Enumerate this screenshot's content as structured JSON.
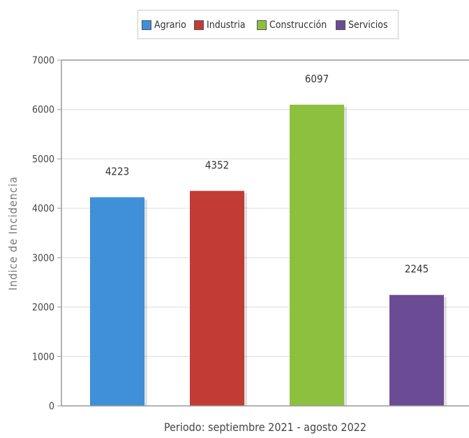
{
  "chart_data": {
    "type": "bar",
    "categories": [
      "Agrario",
      "Industria",
      "Construcción",
      "Servicios"
    ],
    "values": [
      4223,
      4352,
      6097,
      2245
    ],
    "series": [
      {
        "name": "Agrario",
        "value": 4223,
        "color": "#3f8fd9"
      },
      {
        "name": "Industria",
        "value": 4352,
        "color": "#c23b35"
      },
      {
        "name": "Construcción",
        "value": 6097,
        "color": "#8ec040"
      },
      {
        "name": "Servicios",
        "value": 2245,
        "color": "#6a4b94"
      }
    ],
    "xlabel": "Periodo: septiembre 2021 - agosto 2022",
    "ylabel": "Indice de Incidencia",
    "ylim": [
      0,
      7000
    ],
    "yticks": [
      0,
      1000,
      2000,
      3000,
      4000,
      5000,
      6000,
      7000
    ],
    "grid": true,
    "legend": "top-center"
  }
}
